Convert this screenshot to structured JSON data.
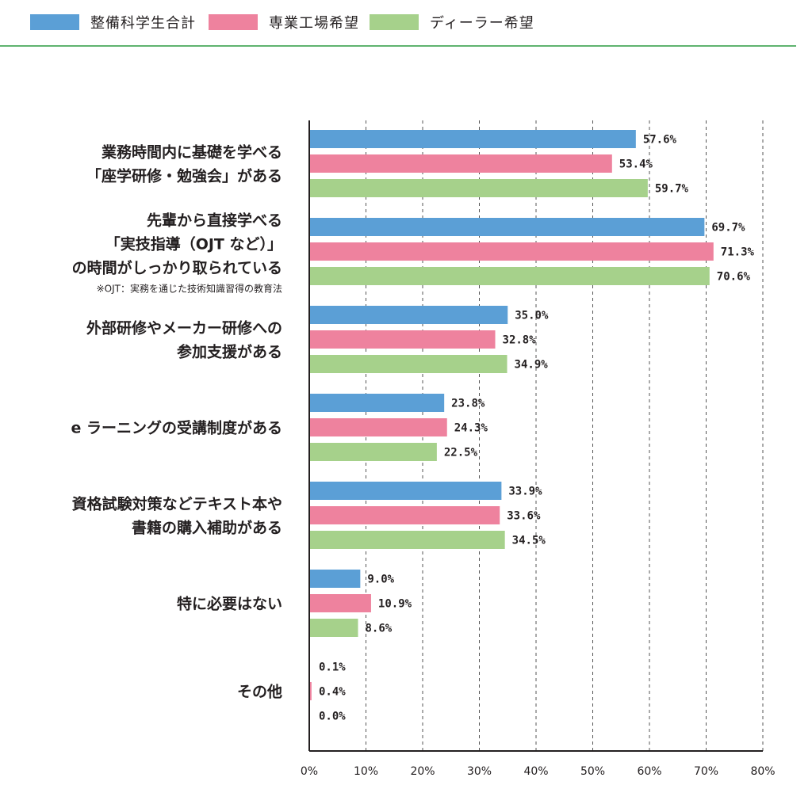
{
  "legend": {
    "items": [
      {
        "label": "整備科学生合計",
        "color": "#5b9fd6"
      },
      {
        "label": "専業工場希望",
        "color": "#ee829e"
      },
      {
        "label": "ディーラー希望",
        "color": "#a6d18b"
      }
    ],
    "rule_color": "#5fb36f"
  },
  "chart_data": {
    "type": "bar",
    "orientation": "horizontal",
    "categories": [
      {
        "lines": [
          "業務時間内に基礎を学べる",
          "「座学研修・勉強会」がある"
        ],
        "note": ""
      },
      {
        "lines": [
          "先輩から直接学べる",
          "「実技指導（OJT など）」",
          "の時間がしっかり取られている"
        ],
        "note": "※OJT：実務を通じた技術知識習得の教育法"
      },
      {
        "lines": [
          "外部研修やメーカー研修への",
          "参加支援がある"
        ],
        "note": ""
      },
      {
        "lines": [
          "e ラーニングの受講制度がある"
        ],
        "note": ""
      },
      {
        "lines": [
          "資格試験対策などテキスト本や",
          "書籍の購入補助がある"
        ],
        "note": ""
      },
      {
        "lines": [
          "特に必要はない"
        ],
        "note": ""
      },
      {
        "lines": [
          "その他"
        ],
        "note": ""
      }
    ],
    "series": [
      {
        "name": "整備科学生合計",
        "color": "#5b9fd6",
        "values": [
          57.6,
          69.7,
          35.0,
          23.8,
          33.9,
          9.0,
          0.1
        ],
        "labels": [
          "57.6%",
          "69.7%",
          "35.0%",
          "23.8%",
          "33.9%",
          "9.0%",
          "0.1%"
        ]
      },
      {
        "name": "専業工場希望",
        "color": "#ee829e",
        "values": [
          53.4,
          71.3,
          32.8,
          24.3,
          33.6,
          10.9,
          0.4
        ],
        "labels": [
          "53.4%",
          "71.3%",
          "32.8%",
          "24.3%",
          "33.6%",
          "10.9%",
          "0.4%"
        ]
      },
      {
        "name": "ディーラー希望",
        "color": "#a6d18b",
        "values": [
          59.7,
          70.6,
          34.9,
          22.5,
          34.5,
          8.6,
          0.0
        ],
        "labels": [
          "59.7%",
          "70.6%",
          "34.9%",
          "22.5%",
          "34.5%",
          "8.6%",
          "0.0%"
        ]
      }
    ],
    "xlim": [
      0,
      80
    ],
    "xticks": [
      0,
      10,
      20,
      30,
      40,
      50,
      60,
      70,
      80
    ],
    "xtick_labels": [
      "0%",
      "10%",
      "20%",
      "30%",
      "40%",
      "50%",
      "60%",
      "70%",
      "80%"
    ],
    "grid": "vertical-dashed",
    "legend_position": "top"
  }
}
